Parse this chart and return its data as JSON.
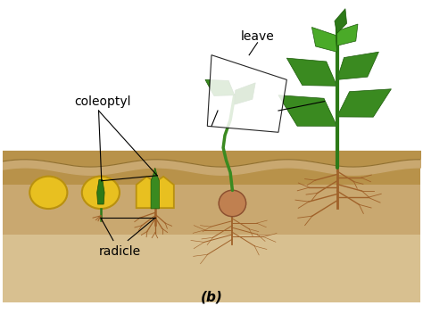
{
  "background_color": "#ffffff",
  "soil_top_color": "#b8924a",
  "soil_mid_color": "#c9a870",
  "soil_bottom_color": "#d8c090",
  "seed_color": "#e8c020",
  "seed_outline": "#b89010",
  "green_dark": "#2d7a18",
  "green_mid": "#3a8a20",
  "green_light": "#4aaa28",
  "root_color": "#a0622a",
  "root_dark": "#7a4010",
  "bulb_color": "#c08050",
  "label_coleoptyl": "coleoptyl",
  "label_radicle": "radicle",
  "label_leave": "leave",
  "label_b": "(b)",
  "text_fontsize": 10,
  "title_fontsize": 11,
  "annotation_lw": 0.8
}
